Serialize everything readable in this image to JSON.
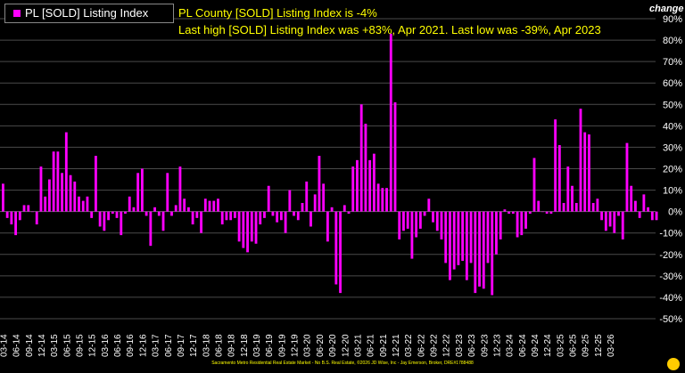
{
  "legend": {
    "label": "PL [SOLD] Listing Index",
    "color": "#ff00ff"
  },
  "subtitle": {
    "line1": "PL County [SOLD] Listing Index is -4%",
    "line2": "Last high [SOLD] Listing Index was +83%, Apr 2021. Last low was -39%, Apr 2023"
  },
  "axis_unit_label": "change",
  "footer": "Sacramento Metro Residential Real Estate Market - No B.S. Real Estate, ©2026 JD Wise, Inc - Jay Emerson, Broker, DRE#1788488",
  "colors": {
    "background": "#000000",
    "bar": "#ff00ff",
    "grid": "#4a4a4a",
    "subtitle": "#ffff00",
    "text": "#ffffff"
  },
  "chart_data": {
    "type": "bar",
    "title": "",
    "xlabel": "",
    "ylabel": "change",
    "ylim": [
      -50,
      90
    ],
    "yticks": [
      -50,
      -40,
      -30,
      -20,
      -10,
      0,
      10,
      20,
      30,
      40,
      50,
      60,
      70,
      80,
      90
    ],
    "ytick_labels": [
      "-50%",
      "-40%",
      "-30%",
      "-20%",
      "-10%",
      "0%",
      "10%",
      "20%",
      "30%",
      "40%",
      "50%",
      "60%",
      "70%",
      "80%",
      "90%"
    ],
    "grid": true,
    "legend_position": "top-left",
    "x_start": "03-14",
    "x_tick_labels": [
      "03-14",
      "06-14",
      "09-14",
      "12-14",
      "03-15",
      "06-15",
      "09-15",
      "12-15",
      "03-16",
      "06-16",
      "09-16",
      "12-16",
      "03-17",
      "06-17",
      "09-17",
      "12-17",
      "03-18",
      "06-18",
      "09-18",
      "12-18",
      "03-19",
      "06-19",
      "09-19",
      "12-19",
      "03-20",
      "06-20",
      "09-20",
      "12-20",
      "03-21",
      "06-21",
      "09-21",
      "12-21",
      "03-22",
      "06-22",
      "09-22",
      "12-22",
      "03-23",
      "06-23",
      "09-23",
      "12-23",
      "03-24",
      "06-24",
      "09-24",
      "12-24",
      "03-25",
      "06-25",
      "09-25",
      "12-25",
      "03-26"
    ],
    "series": [
      {
        "name": "PL [SOLD] Listing Index",
        "color": "#ff00ff",
        "values": [
          13,
          -3,
          -6,
          -11,
          -4,
          3,
          3,
          0,
          -6,
          21,
          7,
          15,
          28,
          28,
          18,
          37,
          17,
          14,
          7,
          5,
          7,
          -3,
          26,
          -7,
          -9,
          -4,
          -1,
          -3,
          -11,
          -1,
          7,
          2,
          18,
          20,
          -2,
          -16,
          2,
          -2,
          -9,
          18,
          -2,
          3,
          21,
          6,
          2,
          -6,
          -3,
          -10,
          6,
          5,
          5,
          6,
          -6,
          -4,
          -4,
          -3,
          -14,
          -17,
          -19,
          -14,
          -15,
          -6,
          -3,
          12,
          -2,
          -5,
          -4,
          -10,
          10,
          -2,
          -4,
          4,
          14,
          -7,
          8,
          26,
          13,
          -14,
          2,
          -34,
          -38,
          3,
          -1,
          21,
          24,
          50,
          41,
          24,
          27,
          13,
          11,
          11,
          83,
          51,
          -13,
          -9,
          -8,
          -22,
          -12,
          -8,
          -2,
          6,
          -5,
          -9,
          -13,
          -24,
          -32,
          -27,
          -25,
          -23,
          -32,
          -24,
          -38,
          -35,
          -36,
          -24,
          -39,
          -20,
          -13,
          1,
          -1,
          -1,
          -12,
          -11,
          -8,
          -1,
          25,
          5,
          0,
          -1,
          -1,
          43,
          31,
          4,
          21,
          12,
          4,
          48,
          37,
          36,
          4,
          6,
          -4,
          -9,
          -7,
          -10,
          -2,
          -13,
          32,
          12,
          5,
          -3,
          8,
          2,
          -4,
          -4
        ]
      }
    ]
  }
}
